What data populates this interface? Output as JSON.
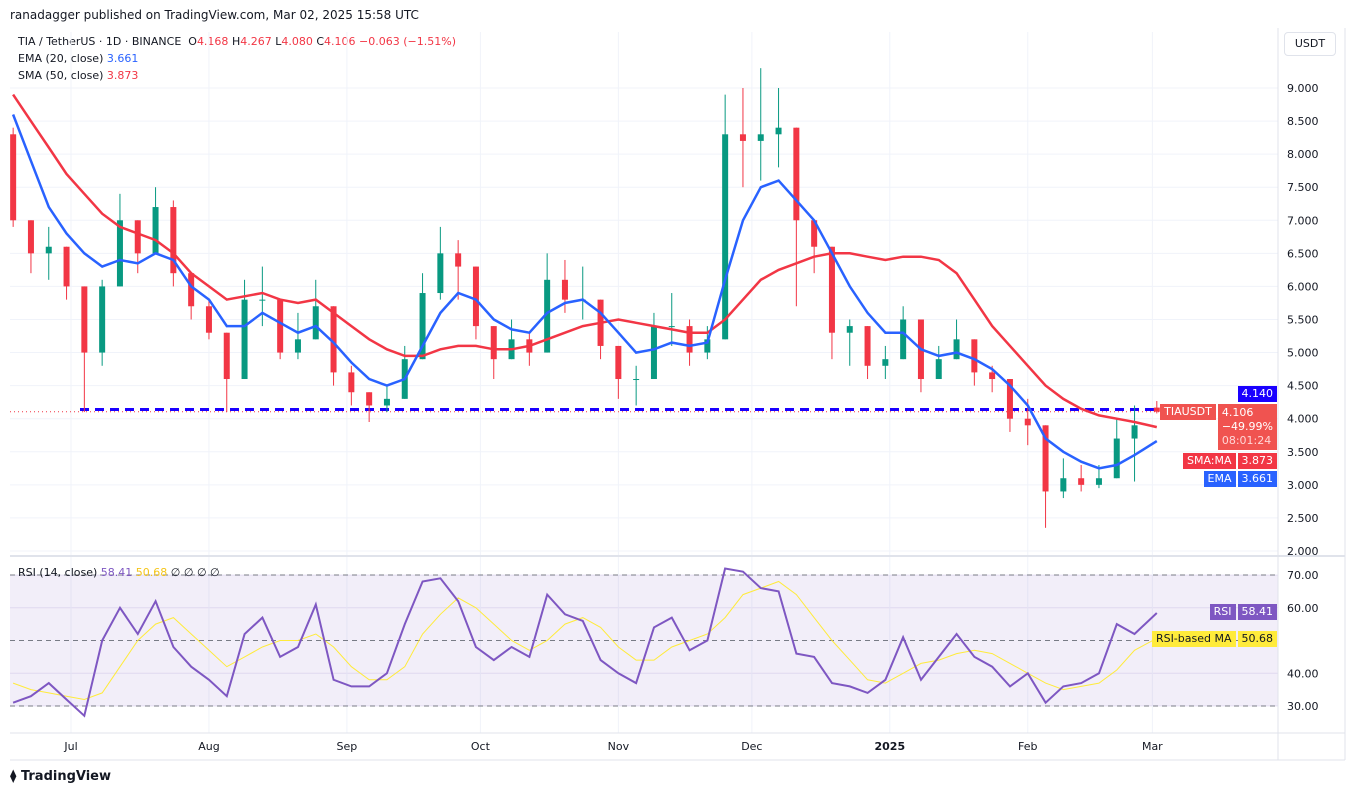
{
  "header": {
    "published": "ranadagger published on TradingView.com, Mar 02, 2025 15:58 UTC",
    "symbol": "TIA / TetherUS · 1D · BINANCE",
    "o_label": "O",
    "o": "4.168",
    "h_label": "H",
    "h": "4.267",
    "l_label": "L",
    "l": "4.080",
    "c_label": "C",
    "c": "4.106",
    "change": "−0.063 (−1.51%)",
    "ema_label": "EMA (20, close)",
    "ema_value": "3.661",
    "sma_label": "SMA (50, close)",
    "sma_value": "3.873",
    "rsi_label": "RSI (14, close)",
    "rsi_value": "58.41",
    "rsi_ma_value": "50.68",
    "rsi_extra": "∅ ∅ ∅ ∅"
  },
  "axis": {
    "currency": "USDT",
    "price_ticks": [
      "2.000",
      "2.500",
      "3.000",
      "3.500",
      "4.000",
      "4.500",
      "5.000",
      "5.500",
      "6.000",
      "6.500",
      "7.000",
      "7.500",
      "8.000",
      "8.500",
      "9.000"
    ],
    "rsi_ticks": [
      "30.00",
      "40.00",
      "60.00",
      "70.00"
    ],
    "time_ticks": [
      {
        "label": "Jul",
        "date": "2024-07-01"
      },
      {
        "label": "Aug",
        "date": "2024-08-01"
      },
      {
        "label": "Sep",
        "date": "2024-09-01"
      },
      {
        "label": "Oct",
        "date": "2024-10-01"
      },
      {
        "label": "Nov",
        "date": "2024-11-01"
      },
      {
        "label": "Dec",
        "date": "2024-12-01"
      },
      {
        "label": "2025",
        "date": "2025-01-01"
      },
      {
        "label": "Feb",
        "date": "2025-02-01"
      },
      {
        "label": "Mar",
        "date": "2025-03-01"
      }
    ]
  },
  "badges": {
    "level": "4.140",
    "symbol": "TIAUSDT",
    "price": "4.106",
    "pct": "−49.99%",
    "countdown": "08:01:24",
    "sma_tag": "SMA:MA",
    "sma_val": "3.873",
    "ema_tag": "EMA",
    "ema_val": "3.661",
    "rsi_tag": "RSI",
    "rsi_val": "58.41",
    "rsima_tag": "RSI-based MA",
    "rsima_val": "50.68"
  },
  "colors": {
    "up": "#089981",
    "down": "#f23645",
    "ema": "#2962ff",
    "sma": "#f23645",
    "rsi": "#7e57c2",
    "rsi_ma": "#ffeb3b",
    "level": "#1a00ff"
  },
  "footer": {
    "brand": "TradingView"
  },
  "chart_data": {
    "type": "candlestick",
    "price_range": [
      2.0,
      9.3
    ],
    "rsi_range": [
      20,
      80
    ],
    "rsi_band": [
      30,
      70
    ],
    "horizontal_level": 4.14,
    "grid": true,
    "columns": [
      "date",
      "open",
      "high",
      "low",
      "close",
      "ema20",
      "sma50",
      "rsi",
      "rsi_ma"
    ],
    "rows": [
      [
        "2024-06-18",
        8.3,
        8.4,
        6.9,
        7.0,
        8.6,
        8.9,
        31,
        37
      ],
      [
        "2024-06-22",
        7.0,
        6.9,
        6.2,
        6.5,
        7.9,
        8.5,
        33,
        35
      ],
      [
        "2024-06-26",
        6.5,
        6.9,
        6.1,
        6.6,
        7.2,
        8.1,
        37,
        34
      ],
      [
        "2024-06-30",
        6.6,
        6.6,
        5.8,
        6.0,
        6.8,
        7.7,
        32,
        33
      ],
      [
        "2024-07-04",
        6.0,
        6.0,
        4.1,
        5.0,
        6.5,
        7.4,
        27,
        32
      ],
      [
        "2024-07-08",
        5.0,
        6.1,
        4.8,
        6.0,
        6.3,
        7.1,
        50,
        34
      ],
      [
        "2024-07-12",
        6.0,
        7.4,
        6.0,
        7.0,
        6.4,
        6.9,
        60,
        42
      ],
      [
        "2024-07-16",
        7.0,
        7.0,
        6.2,
        6.5,
        6.35,
        6.8,
        52,
        50
      ],
      [
        "2024-07-20",
        6.5,
        7.5,
        6.5,
        7.2,
        6.5,
        6.7,
        62,
        55
      ],
      [
        "2024-07-24",
        7.2,
        7.3,
        6.0,
        6.2,
        6.4,
        6.5,
        48,
        57
      ],
      [
        "2024-07-28",
        6.2,
        6.2,
        5.5,
        5.7,
        6.0,
        6.2,
        42,
        52
      ],
      [
        "2024-08-01",
        5.7,
        5.8,
        5.2,
        5.3,
        5.8,
        6.0,
        38,
        47
      ],
      [
        "2024-08-05",
        5.3,
        5.3,
        4.1,
        4.6,
        5.4,
        5.8,
        33,
        42
      ],
      [
        "2024-08-09",
        4.6,
        6.1,
        4.6,
        5.8,
        5.4,
        5.85,
        52,
        45
      ],
      [
        "2024-08-13",
        5.8,
        6.3,
        5.4,
        5.8,
        5.6,
        5.9,
        57,
        48
      ],
      [
        "2024-08-17",
        5.8,
        5.8,
        4.9,
        5.0,
        5.45,
        5.8,
        45,
        50
      ],
      [
        "2024-08-21",
        5.0,
        5.6,
        4.9,
        5.2,
        5.3,
        5.75,
        48,
        50
      ],
      [
        "2024-08-25",
        5.2,
        6.1,
        5.2,
        5.7,
        5.4,
        5.8,
        61,
        52
      ],
      [
        "2024-08-29",
        5.7,
        5.7,
        4.5,
        4.7,
        5.15,
        5.6,
        38,
        48
      ],
      [
        "2024-09-02",
        4.7,
        4.8,
        4.2,
        4.4,
        4.85,
        5.4,
        36,
        42
      ],
      [
        "2024-09-06",
        4.4,
        4.4,
        3.95,
        4.2,
        4.6,
        5.2,
        36,
        38
      ],
      [
        "2024-09-10",
        4.2,
        4.5,
        4.1,
        4.3,
        4.5,
        5.05,
        40,
        38
      ],
      [
        "2024-09-14",
        4.3,
        5.1,
        4.3,
        4.9,
        4.6,
        4.95,
        55,
        42
      ],
      [
        "2024-09-18",
        4.9,
        6.2,
        4.9,
        5.9,
        5.1,
        4.95,
        68,
        52
      ],
      [
        "2024-09-22",
        5.9,
        6.9,
        5.8,
        6.5,
        5.6,
        5.05,
        69,
        58
      ],
      [
        "2024-09-26",
        6.5,
        6.7,
        5.8,
        6.3,
        5.9,
        5.1,
        62,
        63
      ],
      [
        "2024-09-30",
        6.3,
        6.3,
        5.2,
        5.4,
        5.8,
        5.1,
        48,
        60
      ],
      [
        "2024-10-04",
        5.4,
        5.4,
        4.6,
        4.9,
        5.5,
        5.05,
        44,
        55
      ],
      [
        "2024-10-08",
        4.9,
        5.5,
        4.9,
        5.2,
        5.35,
        5.05,
        48,
        50
      ],
      [
        "2024-10-12",
        5.2,
        5.3,
        4.8,
        5.0,
        5.3,
        5.1,
        45,
        47
      ],
      [
        "2024-10-16",
        5.0,
        6.5,
        5.0,
        6.1,
        5.6,
        5.2,
        64,
        50
      ],
      [
        "2024-10-20",
        6.1,
        6.4,
        5.6,
        5.8,
        5.75,
        5.3,
        58,
        55
      ],
      [
        "2024-10-24",
        5.8,
        6.3,
        5.5,
        5.8,
        5.8,
        5.4,
        56,
        57
      ],
      [
        "2024-10-28",
        5.8,
        5.8,
        4.9,
        5.1,
        5.6,
        5.45,
        44,
        54
      ],
      [
        "2024-11-01",
        5.1,
        5.1,
        4.3,
        4.6,
        5.3,
        5.5,
        40,
        48
      ],
      [
        "2024-11-05",
        4.6,
        4.8,
        4.2,
        4.6,
        5.0,
        5.45,
        37,
        44
      ],
      [
        "2024-11-09",
        4.6,
        5.6,
        4.6,
        5.4,
        5.05,
        5.4,
        54,
        44
      ],
      [
        "2024-11-13",
        5.4,
        5.9,
        5.1,
        5.4,
        5.15,
        5.35,
        57,
        48
      ],
      [
        "2024-11-17",
        5.4,
        5.5,
        4.8,
        5.0,
        5.1,
        5.3,
        47,
        50
      ],
      [
        "2024-11-21",
        5.0,
        5.4,
        4.9,
        5.2,
        5.15,
        5.3,
        50,
        52
      ],
      [
        "2024-11-25",
        5.2,
        8.9,
        5.2,
        8.3,
        6.1,
        5.5,
        72,
        57
      ],
      [
        "2024-11-29",
        8.3,
        9.0,
        7.5,
        8.2,
        7.0,
        5.8,
        71,
        64
      ],
      [
        "2024-12-03",
        8.2,
        9.3,
        7.6,
        8.3,
        7.5,
        6.1,
        66,
        66
      ],
      [
        "2024-12-07",
        8.3,
        9.0,
        7.8,
        8.4,
        7.6,
        6.25,
        65,
        68
      ],
      [
        "2024-12-11",
        8.4,
        8.4,
        5.7,
        7.0,
        7.3,
        6.35,
        46,
        64
      ],
      [
        "2024-12-15",
        7.0,
        7.0,
        6.2,
        6.6,
        7.0,
        6.45,
        45,
        57
      ],
      [
        "2024-12-19",
        6.6,
        6.6,
        4.9,
        5.3,
        6.5,
        6.5,
        37,
        50
      ],
      [
        "2024-12-23",
        5.3,
        5.5,
        4.8,
        5.4,
        6.0,
        6.5,
        36,
        44
      ],
      [
        "2024-12-27",
        5.4,
        5.4,
        4.6,
        4.8,
        5.6,
        6.45,
        34,
        38
      ],
      [
        "2024-12-31",
        4.8,
        5.1,
        4.6,
        4.9,
        5.3,
        6.4,
        38,
        37
      ],
      [
        "2025-01-04",
        4.9,
        5.7,
        4.9,
        5.5,
        5.3,
        6.45,
        51,
        40
      ],
      [
        "2025-01-08",
        5.5,
        5.5,
        4.4,
        4.6,
        5.05,
        6.45,
        38,
        43
      ],
      [
        "2025-01-12",
        4.6,
        5.1,
        4.6,
        4.9,
        4.95,
        6.4,
        45,
        44
      ],
      [
        "2025-01-16",
        4.9,
        5.5,
        4.9,
        5.2,
        5.0,
        6.2,
        52,
        46
      ],
      [
        "2025-01-20",
        5.2,
        5.2,
        4.5,
        4.7,
        4.9,
        5.8,
        45,
        47
      ],
      [
        "2025-01-24",
        4.7,
        4.8,
        4.4,
        4.6,
        4.75,
        5.4,
        42,
        46
      ],
      [
        "2025-01-28",
        4.6,
        4.6,
        3.8,
        4.0,
        4.5,
        5.1,
        36,
        43
      ],
      [
        "2025-02-01",
        4.0,
        4.3,
        3.6,
        3.9,
        4.2,
        4.8,
        40,
        40
      ],
      [
        "2025-02-05",
        3.9,
        3.9,
        2.35,
        2.9,
        3.7,
        4.5,
        31,
        37
      ],
      [
        "2025-02-09",
        2.9,
        3.4,
        2.8,
        3.1,
        3.5,
        4.3,
        36,
        35
      ],
      [
        "2025-02-13",
        3.1,
        3.3,
        2.9,
        3.0,
        3.35,
        4.15,
        37,
        36
      ],
      [
        "2025-02-17",
        3.0,
        3.3,
        2.95,
        3.1,
        3.25,
        4.05,
        40,
        37
      ],
      [
        "2025-02-21",
        3.1,
        4.0,
        3.1,
        3.7,
        3.3,
        4.0,
        55,
        41
      ],
      [
        "2025-02-25",
        3.7,
        4.2,
        3.05,
        3.9,
        3.45,
        3.95,
        52,
        47
      ],
      [
        "2025-03-02",
        4.168,
        4.267,
        4.08,
        4.106,
        3.661,
        3.873,
        58.41,
        50.68
      ]
    ]
  }
}
